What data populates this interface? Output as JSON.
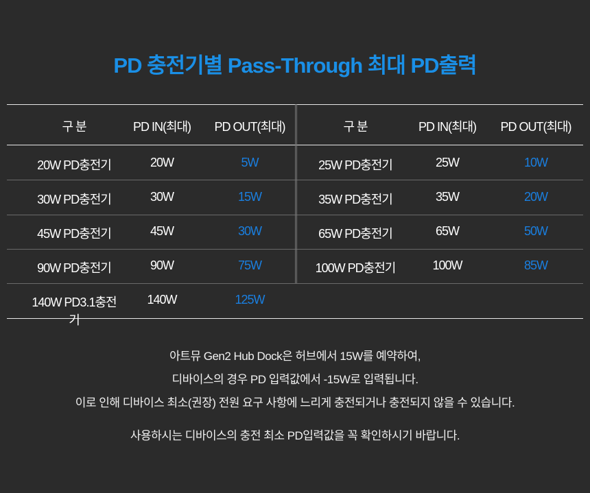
{
  "title": "PD 충전기별 Pass-Through 최대 PD출력",
  "colors": {
    "accent": "#1a8fe6",
    "background": "#2b2b2b"
  },
  "table": {
    "headers": [
      "구 분",
      "PD IN(최대)",
      "PD OUT(최대)",
      "구 분",
      "PD IN(최대)",
      "PD OUT(최대)"
    ],
    "rows": [
      [
        "20W PD충전기",
        "20W",
        "5W",
        "25W PD충전기",
        "25W",
        "10W"
      ],
      [
        "30W PD충전기",
        "30W",
        "15W",
        "35W PD충전기",
        "35W",
        "20W"
      ],
      [
        "45W PD충전기",
        "45W",
        "30W",
        "65W PD충전기",
        "65W",
        "50W"
      ],
      [
        "90W PD충전기",
        "90W",
        "75W",
        "100W PD충전기",
        "100W",
        "85W"
      ],
      [
        "140W PD3.1충전기",
        "140W",
        "125W"
      ]
    ]
  },
  "notes": [
    "아트뮤 Gen2 Hub Dock은 허브에서 15W를 예약하여,",
    "디바이스의 경우 PD 입력값에서 -15W로 입력됩니다.",
    "이로 인해 디바이스 최소(권장) 전원 요구 사항에 느리게 충전되거나 충전되지 않을 수 있습니다.",
    "사용하시는 디바이스의 충전 최소 PD입력값을 꼭 확인하시기 바랍니다."
  ]
}
